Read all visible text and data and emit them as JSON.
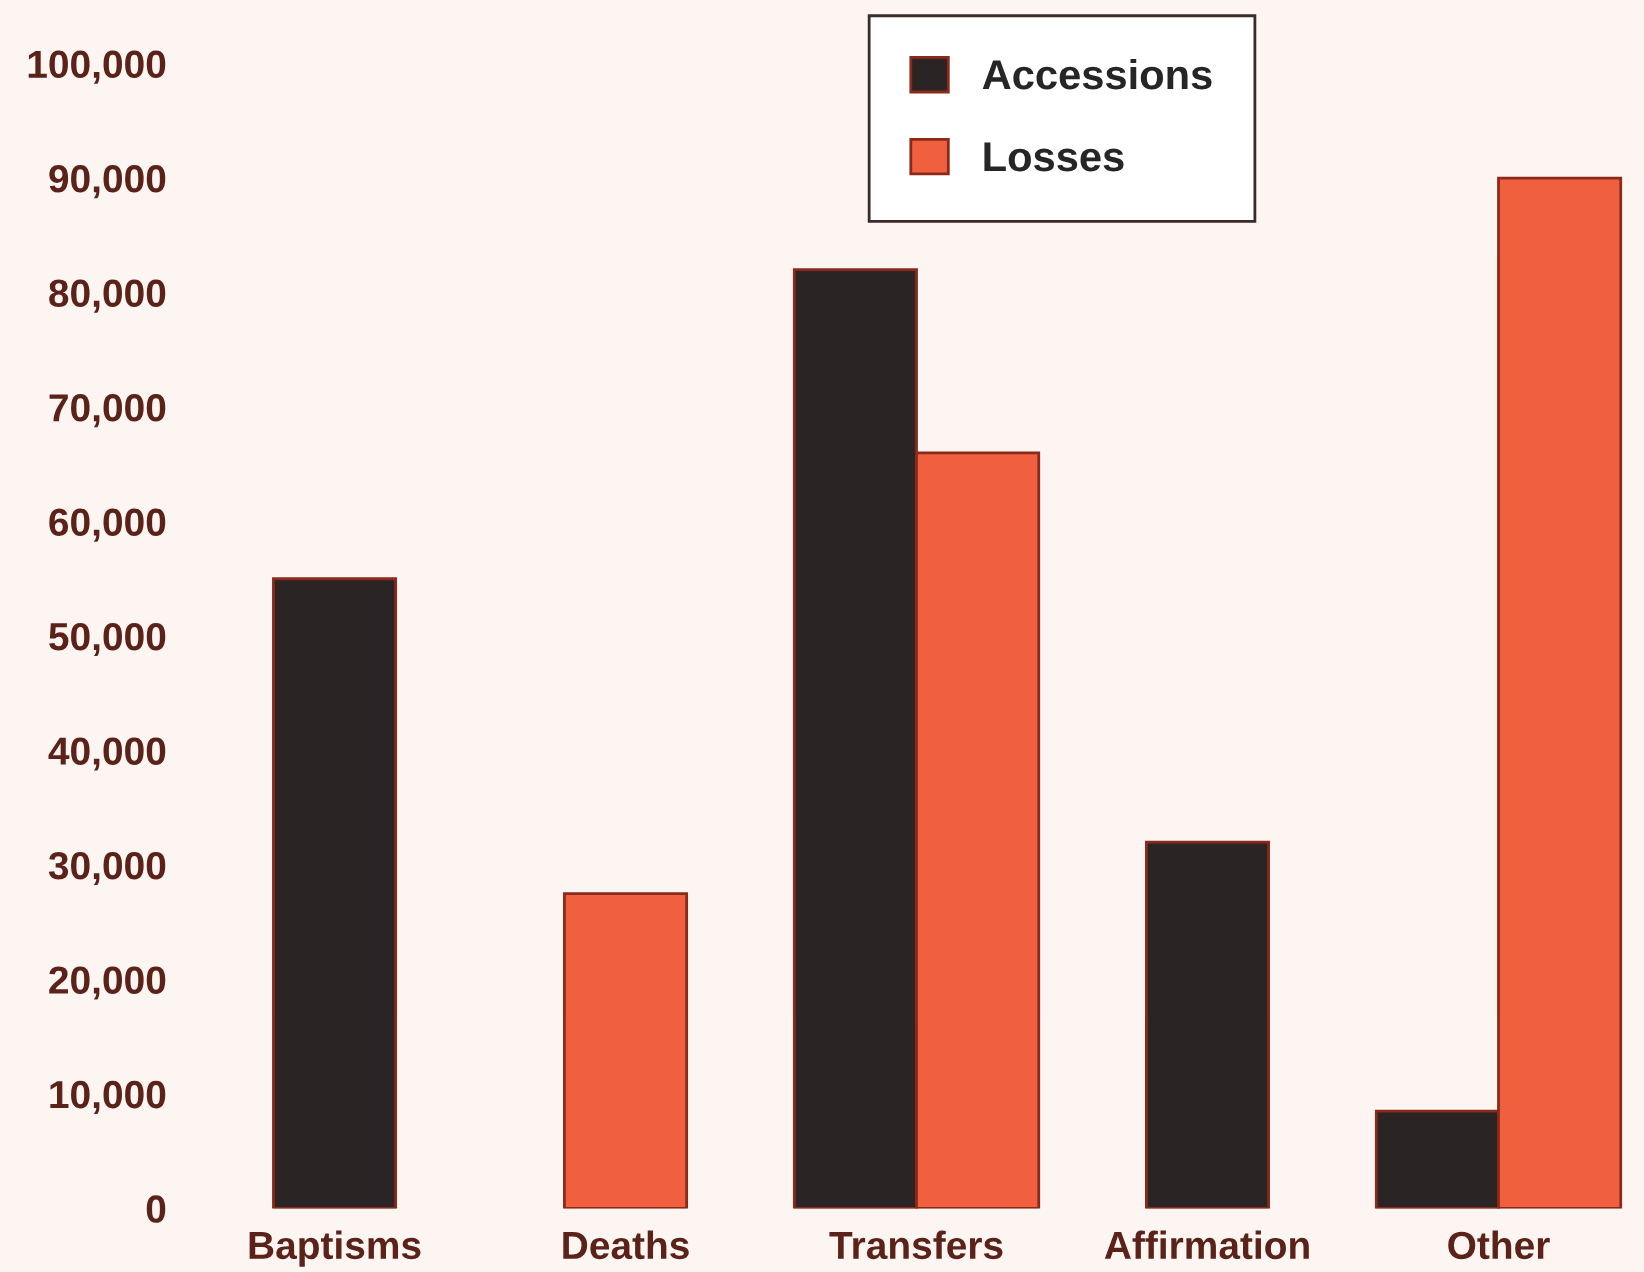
{
  "chart_data": {
    "type": "bar",
    "categories": [
      "Baptisms",
      "Deaths",
      "Transfers",
      "Affirmation",
      "Other"
    ],
    "series": [
      {
        "name": "Accessions",
        "color": "#2b2424",
        "values": [
          55000,
          null,
          82000,
          32000,
          8500
        ]
      },
      {
        "name": "Losses",
        "color": "#f0603e",
        "values": [
          null,
          27500,
          66000,
          null,
          90000
        ]
      }
    ],
    "ylim": [
      0,
      100000
    ],
    "yticks": [
      {
        "value": 0,
        "label": "0"
      },
      {
        "value": 10000,
        "label": "10,000"
      },
      {
        "value": 20000,
        "label": "20,000"
      },
      {
        "value": 30000,
        "label": "30,000"
      },
      {
        "value": 40000,
        "label": "40,000"
      },
      {
        "value": 50000,
        "label": "50,000"
      },
      {
        "value": 60000,
        "label": "60,000"
      },
      {
        "value": 70000,
        "label": "70,000"
      },
      {
        "value": 80000,
        "label": "80,000"
      },
      {
        "value": 90000,
        "label": "90,000"
      },
      {
        "value": 100000,
        "label": "100,000"
      }
    ],
    "grid": false,
    "legend": "top"
  }
}
